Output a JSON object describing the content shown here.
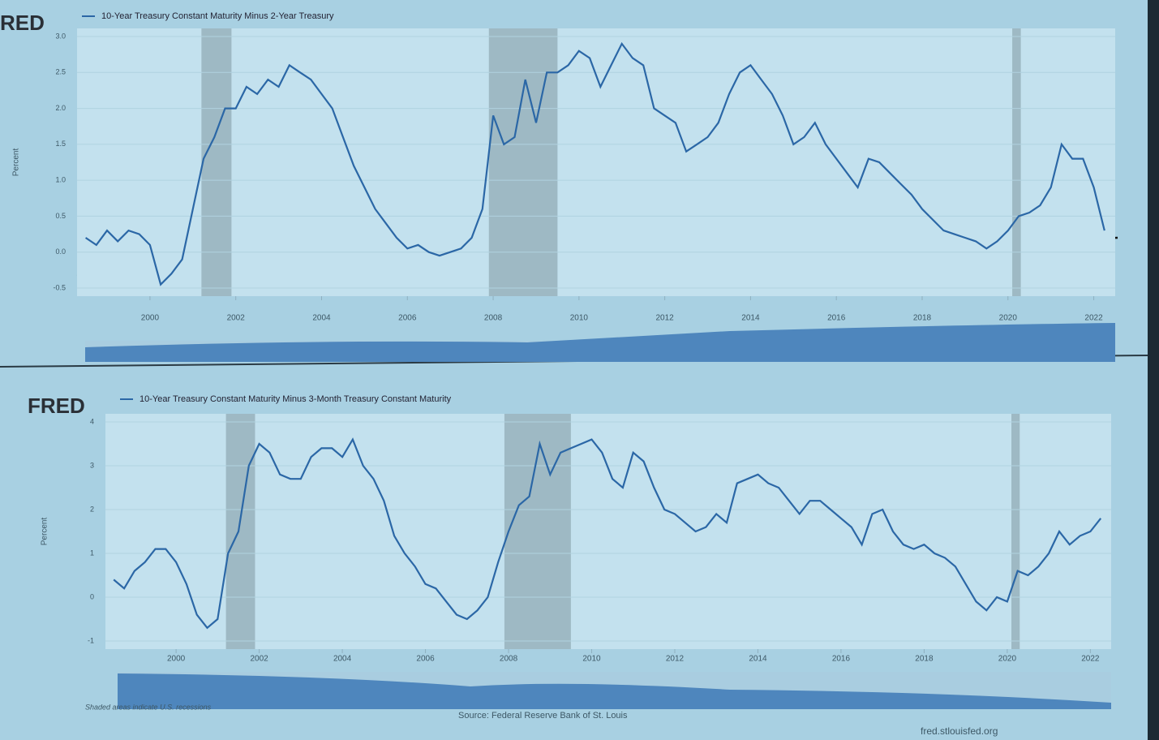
{
  "chart_data": [
    {
      "type": "line",
      "brand": "RED",
      "title": "10-Year Treasury Constant Maturity Minus 2-Year Treasury",
      "ylabel": "Percent",
      "series": [
        {
          "name": "10-Year Treasury Constant Maturity Minus 2-Year Treasury",
          "color": "#2b67a6",
          "x": [
            1998.5,
            1998.75,
            1999,
            1999.25,
            1999.5,
            1999.75,
            2000,
            2000.25,
            2000.5,
            2000.75,
            2001,
            2001.25,
            2001.5,
            2001.75,
            2002,
            2002.25,
            2002.5,
            2002.75,
            2003,
            2003.25,
            2003.5,
            2003.75,
            2004,
            2004.25,
            2004.5,
            2004.75,
            2005,
            2005.25,
            2005.5,
            2005.75,
            2006,
            2006.25,
            2006.5,
            2006.75,
            2007,
            2007.25,
            2007.5,
            2007.75,
            2008,
            2008.25,
            2008.5,
            2008.75,
            2009,
            2009.25,
            2009.5,
            2009.75,
            2010,
            2010.25,
            2010.5,
            2010.75,
            2011,
            2011.25,
            2011.5,
            2011.75,
            2012,
            2012.25,
            2012.5,
            2012.75,
            2013,
            2013.25,
            2013.5,
            2013.75,
            2014,
            2014.25,
            2014.5,
            2014.75,
            2015,
            2015.25,
            2015.5,
            2015.75,
            2016,
            2016.25,
            2016.5,
            2016.75,
            2017,
            2017.25,
            2017.5,
            2017.75,
            2018,
            2018.25,
            2018.5,
            2018.75,
            2019,
            2019.25,
            2019.5,
            2019.75,
            2020,
            2020.25,
            2020.5,
            2020.75,
            2021,
            2021.25,
            2021.5,
            2021.75,
            2022,
            2022.25
          ],
          "values": [
            0.2,
            0.1,
            0.3,
            0.15,
            0.3,
            0.25,
            0.1,
            -0.45,
            -0.3,
            -0.1,
            0.6,
            1.3,
            1.6,
            2.0,
            2.0,
            2.3,
            2.2,
            2.4,
            2.3,
            2.6,
            2.5,
            2.4,
            2.2,
            2.0,
            1.6,
            1.2,
            0.9,
            0.6,
            0.4,
            0.2,
            0.05,
            0.1,
            0,
            -0.05,
            0,
            0.05,
            0.2,
            0.6,
            1.9,
            1.5,
            1.6,
            2.4,
            1.8,
            2.5,
            2.5,
            2.6,
            2.8,
            2.7,
            2.3,
            2.6,
            2.9,
            2.7,
            2.6,
            2.0,
            1.9,
            1.8,
            1.4,
            1.5,
            1.6,
            1.8,
            2.2,
            2.5,
            2.6,
            2.4,
            2.2,
            1.9,
            1.5,
            1.6,
            1.8,
            1.5,
            1.3,
            1.1,
            0.9,
            1.3,
            1.25,
            1.1,
            0.95,
            0.8,
            0.6,
            0.45,
            0.3,
            0.25,
            0.2,
            0.15,
            0.05,
            0.15,
            0.3,
            0.5,
            0.55,
            0.65,
            0.9,
            1.5,
            1.3,
            1.3,
            0.9,
            0.3
          ]
        }
      ],
      "recessions": [
        [
          2001.2,
          2001.9
        ],
        [
          2007.9,
          2009.5
        ],
        [
          2020.1,
          2020.3
        ]
      ],
      "xlim": [
        1998.3,
        2022.5
      ],
      "xticks": [
        2000,
        2002,
        2004,
        2006,
        2008,
        2010,
        2012,
        2014,
        2016,
        2018,
        2020,
        2022
      ],
      "ylim": [
        -0.5,
        3.0
      ],
      "yticks": [
        -0.5,
        {
          "value": 0,
          "label": "0.0"
        },
        0.5,
        {
          "value": 1,
          "label": "1.0"
        },
        1.5,
        {
          "value": 2,
          "label": "2.0"
        },
        2.5,
        {
          "value": 3,
          "label": "3.0"
        }
      ],
      "grid": true
    },
    {
      "type": "line",
      "brand": "FRED",
      "title": "10-Year Treasury Constant Maturity Minus 3-Month Treasury Constant Maturity",
      "ylabel": "Percent",
      "series": [
        {
          "name": "10-Year Treasury Constant Maturity Minus 3-Month Treasury Constant Maturity",
          "color": "#2b67a6",
          "x": [
            1998.5,
            1998.75,
            1999,
            1999.25,
            1999.5,
            1999.75,
            2000,
            2000.25,
            2000.5,
            2000.75,
            2001,
            2001.25,
            2001.5,
            2001.75,
            2002,
            2002.25,
            2002.5,
            2002.75,
            2003,
            2003.25,
            2003.5,
            2003.75,
            2004,
            2004.25,
            2004.5,
            2004.75,
            2005,
            2005.25,
            2005.5,
            2005.75,
            2006,
            2006.25,
            2006.5,
            2006.75,
            2007,
            2007.25,
            2007.5,
            2007.75,
            2008,
            2008.25,
            2008.5,
            2008.75,
            2009,
            2009.25,
            2009.5,
            2009.75,
            2010,
            2010.25,
            2010.5,
            2010.75,
            2011,
            2011.25,
            2011.5,
            2011.75,
            2012,
            2012.25,
            2012.5,
            2012.75,
            2013,
            2013.25,
            2013.5,
            2013.75,
            2014,
            2014.25,
            2014.5,
            2014.75,
            2015,
            2015.25,
            2015.5,
            2015.75,
            2016,
            2016.25,
            2016.5,
            2016.75,
            2017,
            2017.25,
            2017.5,
            2017.75,
            2018,
            2018.25,
            2018.5,
            2018.75,
            2019,
            2019.25,
            2019.5,
            2019.75,
            2020,
            2020.25,
            2020.5,
            2020.75,
            2021,
            2021.25,
            2021.5,
            2021.75,
            2022,
            2022.25
          ],
          "values": [
            0.4,
            0.2,
            0.6,
            0.8,
            1.1,
            1.1,
            0.8,
            0.3,
            -0.4,
            -0.7,
            -0.5,
            1.0,
            1.5,
            3.0,
            3.5,
            3.3,
            2.8,
            2.7,
            2.7,
            3.2,
            3.4,
            3.4,
            3.2,
            3.6,
            3.0,
            2.7,
            2.2,
            1.4,
            1.0,
            0.7,
            0.3,
            0.2,
            -0.1,
            -0.4,
            -0.5,
            -0.3,
            0,
            0.8,
            1.5,
            2.1,
            2.3,
            3.5,
            2.8,
            3.3,
            3.4,
            3.5,
            3.6,
            3.3,
            2.7,
            2.5,
            3.3,
            3.1,
            2.5,
            2.0,
            1.9,
            1.7,
            1.5,
            1.6,
            1.9,
            1.7,
            2.6,
            2.7,
            2.8,
            2.6,
            2.5,
            2.2,
            1.9,
            2.2,
            2.2,
            2.0,
            1.8,
            1.6,
            1.2,
            1.9,
            2.0,
            1.5,
            1.2,
            1.1,
            1.2,
            1.0,
            0.9,
            0.7,
            0.3,
            -0.1,
            -0.3,
            0,
            -0.1,
            0.6,
            0.5,
            0.7,
            1.0,
            1.5,
            1.2,
            1.4,
            1.5,
            1.8
          ]
        }
      ],
      "recessions": [
        [
          2001.2,
          2001.9
        ],
        [
          2007.9,
          2009.5
        ],
        [
          2020.1,
          2020.3
        ]
      ],
      "xlim": [
        1998.3,
        2022.5
      ],
      "xticks": [
        2000,
        2002,
        2004,
        2006,
        2008,
        2010,
        2012,
        2014,
        2016,
        2018,
        2020,
        2022
      ],
      "ylim": [
        -1,
        4
      ],
      "yticks": [
        -1,
        0,
        1,
        2,
        3,
        4
      ],
      "grid": true
    }
  ],
  "footer": {
    "note": "Shaded areas indicate U.S. recessions",
    "source": "Source: Federal Reserve Bank of St. Louis",
    "url": "fred.stlouisfed.org"
  }
}
